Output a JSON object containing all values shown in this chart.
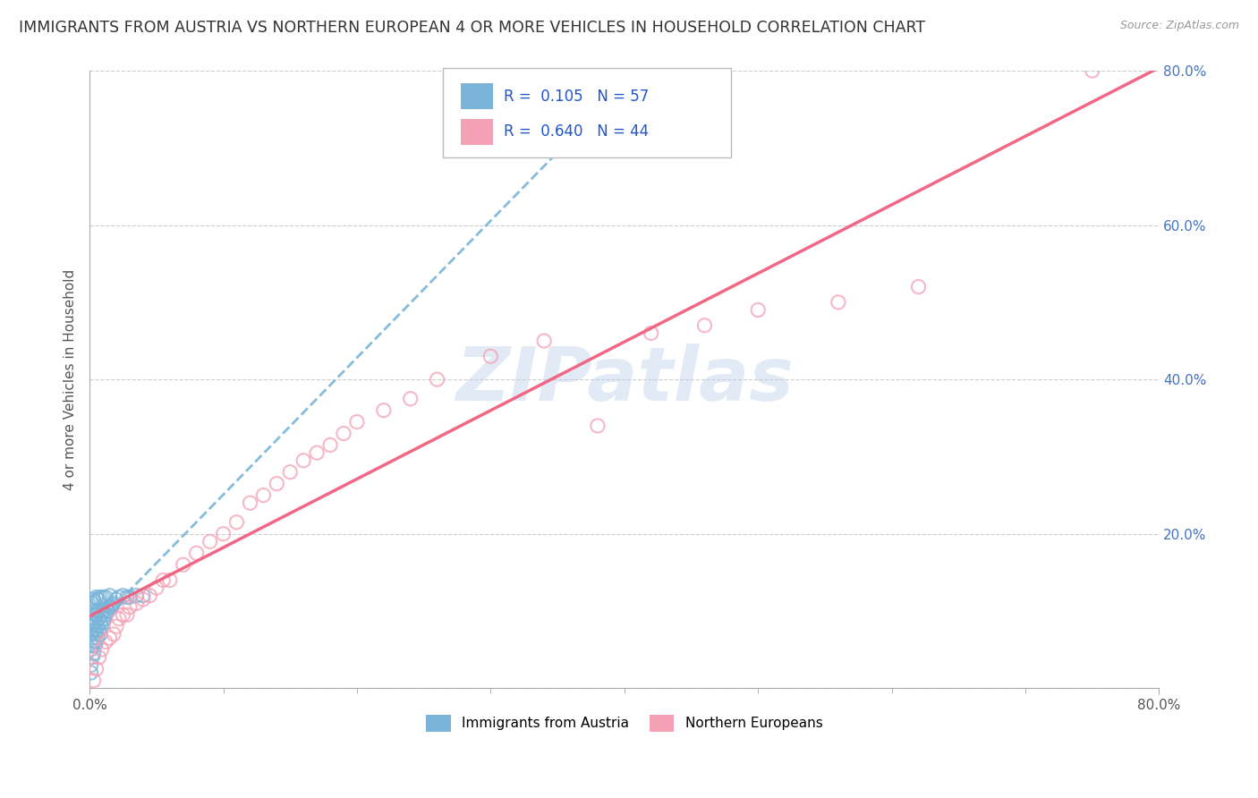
{
  "title": "IMMIGRANTS FROM AUSTRIA VS NORTHERN EUROPEAN 4 OR MORE VEHICLES IN HOUSEHOLD CORRELATION CHART",
  "source": "Source: ZipAtlas.com",
  "ylabel": "4 or more Vehicles in Household",
  "xlim": [
    0.0,
    0.8
  ],
  "ylim": [
    0.0,
    0.8
  ],
  "ytick_values": [
    0.0,
    0.2,
    0.4,
    0.6,
    0.8
  ],
  "ytick_labels": [
    "",
    "20.0%",
    "40.0%",
    "60.0%",
    "80.0%"
  ],
  "xtick_values": [
    0.0,
    0.8
  ],
  "xtick_labels": [
    "0.0%",
    "80.0%"
  ],
  "watermark": "ZIPatlas",
  "r1": 0.105,
  "n1": 57,
  "r2": 0.64,
  "n2": 44,
  "color_blue": "#7ab4d8",
  "color_pink": "#f4a0b5",
  "line_color_blue": "#7ab4d8",
  "line_color_pink": "#f06080",
  "title_fontsize": 12.5,
  "background_color": "#ffffff",
  "grid_color": "#cccccc",
  "austria_x": [
    0.001,
    0.001,
    0.001,
    0.001,
    0.002,
    0.002,
    0.002,
    0.002,
    0.002,
    0.003,
    0.003,
    0.003,
    0.003,
    0.004,
    0.004,
    0.004,
    0.004,
    0.005,
    0.005,
    0.005,
    0.006,
    0.006,
    0.006,
    0.007,
    0.007,
    0.008,
    0.008,
    0.008,
    0.009,
    0.009,
    0.01,
    0.01,
    0.011,
    0.012,
    0.013,
    0.014,
    0.015,
    0.016,
    0.017,
    0.018,
    0.02,
    0.022,
    0.025,
    0.028,
    0.03,
    0.035,
    0.04,
    0.002,
    0.003,
    0.004,
    0.005,
    0.006,
    0.007,
    0.008,
    0.01,
    0.012,
    0.015
  ],
  "austria_y": [
    0.02,
    0.03,
    0.05,
    0.07,
    0.04,
    0.055,
    0.065,
    0.08,
    0.1,
    0.045,
    0.06,
    0.075,
    0.09,
    0.055,
    0.07,
    0.085,
    0.095,
    0.06,
    0.075,
    0.095,
    0.065,
    0.08,
    0.1,
    0.075,
    0.09,
    0.07,
    0.085,
    0.1,
    0.08,
    0.095,
    0.085,
    0.1,
    0.09,
    0.095,
    0.1,
    0.1,
    0.105,
    0.105,
    0.108,
    0.11,
    0.115,
    0.118,
    0.12,
    0.118,
    0.118,
    0.12,
    0.12,
    0.11,
    0.115,
    0.112,
    0.118,
    0.115,
    0.115,
    0.118,
    0.118,
    0.118,
    0.12
  ],
  "northern_x": [
    0.003,
    0.005,
    0.007,
    0.009,
    0.012,
    0.015,
    0.018,
    0.02,
    0.022,
    0.025,
    0.028,
    0.03,
    0.035,
    0.04,
    0.045,
    0.05,
    0.055,
    0.06,
    0.07,
    0.08,
    0.09,
    0.1,
    0.11,
    0.12,
    0.13,
    0.14,
    0.15,
    0.16,
    0.17,
    0.18,
    0.19,
    0.2,
    0.22,
    0.24,
    0.26,
    0.3,
    0.34,
    0.38,
    0.42,
    0.46,
    0.5,
    0.56,
    0.62,
    0.75
  ],
  "northern_y": [
    0.01,
    0.025,
    0.04,
    0.05,
    0.06,
    0.065,
    0.07,
    0.08,
    0.09,
    0.095,
    0.095,
    0.105,
    0.11,
    0.115,
    0.12,
    0.13,
    0.14,
    0.14,
    0.16,
    0.175,
    0.19,
    0.2,
    0.215,
    0.24,
    0.25,
    0.265,
    0.28,
    0.295,
    0.305,
    0.315,
    0.33,
    0.345,
    0.36,
    0.375,
    0.4,
    0.43,
    0.45,
    0.34,
    0.46,
    0.47,
    0.49,
    0.5,
    0.52,
    0.8
  ]
}
